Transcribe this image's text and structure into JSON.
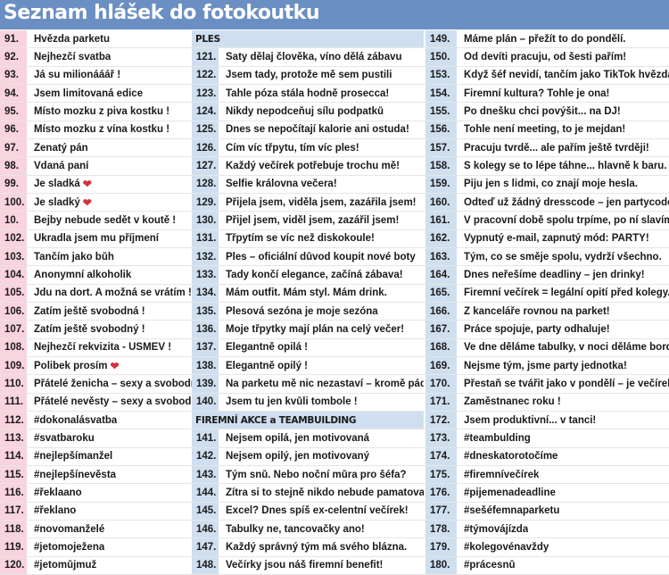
{
  "title": "Seznam hlášek do fotokoutku",
  "colors": {
    "header": "#6b8fc2",
    "col1_number_bg": "#f9d3de",
    "col23_number_bg": "#cfdff0",
    "section_bg": "#cfdff0",
    "heart": "#d8303f"
  },
  "columns": [
    {
      "rows": [
        {
          "n": "91.",
          "t": "Hvězda parketu"
        },
        {
          "n": "92.",
          "t": "Nejhezčí svatba"
        },
        {
          "n": "93.",
          "t": "Já su milionááář !"
        },
        {
          "n": "94.",
          "t": "Jsem limitovaná edice"
        },
        {
          "n": "95.",
          "t": "Místo mozku z piva kostku !"
        },
        {
          "n": "96.",
          "t": "Místo mozku z vína kostku !"
        },
        {
          "n": "97.",
          "t": "Ženatý pán"
        },
        {
          "n": "98.",
          "t": "Vdaná paní"
        },
        {
          "n": "99.",
          "t": "Je sladká",
          "heart": true
        },
        {
          "n": "100.",
          "t": "Je sladký",
          "heart": true
        },
        {
          "n": "10.",
          "t": "Bejby nebude sedět v koutě !"
        },
        {
          "n": "102.",
          "t": "Ukradla jsem mu příjmení"
        },
        {
          "n": "103.",
          "t": "Tančím jako bůh"
        },
        {
          "n": "104.",
          "t": "Anonymní alkoholik"
        },
        {
          "n": "105.",
          "t": "Jdu na dort. A možná se vrátím !"
        },
        {
          "n": "106.",
          "t": "Zatím ještě svobodná !"
        },
        {
          "n": "107.",
          "t": "Zatím ještě svobodný !"
        },
        {
          "n": "108.",
          "t": "Nejhezčí rekvizita - USMĚV !"
        },
        {
          "n": "109.",
          "t": "Polibek prosím",
          "heart": true
        },
        {
          "n": "110.",
          "t": "Přátelé ženicha – sexy a svobodní!"
        },
        {
          "n": "111.",
          "t": "Přátelé nevěsty – sexy a svobodní!"
        },
        {
          "n": "112.",
          "t": "#dokonalásvatba"
        },
        {
          "n": "113.",
          "t": "#svatbaroku"
        },
        {
          "n": "114.",
          "t": "#nejlepšímanžel"
        },
        {
          "n": "115.",
          "t": "#nejlepšínevěsta"
        },
        {
          "n": "116.",
          "t": "#řeklaano"
        },
        {
          "n": "117.",
          "t": "#řeklano"
        },
        {
          "n": "118.",
          "t": "#novomanželé"
        },
        {
          "n": "119.",
          "t": "#jetomoježena"
        },
        {
          "n": "120.",
          "t": "#jetomůjmuž"
        }
      ]
    },
    {
      "rows": [
        {
          "section": "PLES"
        },
        {
          "n": "121.",
          "t": "Šaty dělaj člověka, víno dělá zábavu"
        },
        {
          "n": "122.",
          "t": "Jsem tady, protože mě sem pustili"
        },
        {
          "n": "123.",
          "t": "Tahle póza stála hodně prosecca!"
        },
        {
          "n": "124.",
          "t": "Nikdy nepodceňuj sílu podpatků"
        },
        {
          "n": "125.",
          "t": "Dnes se nepočítají kalorie ani ostuda!"
        },
        {
          "n": "126.",
          "t": "Čím víc třpytu, tím víc ples!"
        },
        {
          "n": "127.",
          "t": "Každý večírek potřebuje trochu mě!"
        },
        {
          "n": "128.",
          "t": "Selfie královna večera!"
        },
        {
          "n": "129.",
          "t": "Přijela jsem, viděla jsem, zazářila jsem!"
        },
        {
          "n": "130.",
          "t": "Přijel jsem, viděl jsem, zazářil jsem!"
        },
        {
          "n": "131.",
          "t": "Třpytím se víc než diskokoule!"
        },
        {
          "n": "132.",
          "t": "Ples – oficiální důvod koupit nové boty"
        },
        {
          "n": "133.",
          "t": "Tady končí elegance, začíná zábava!"
        },
        {
          "n": "134.",
          "t": "Mám outfit. Mám styl. Mám drink."
        },
        {
          "n": "135.",
          "t": "Plesová sezóna je moje sezóna"
        },
        {
          "n": "136.",
          "t": "Moje třpytky mají plán na celý večer!"
        },
        {
          "n": "137.",
          "t": "Elegantně opilá !"
        },
        {
          "n": "138.",
          "t": "Elegantně opilý !"
        },
        {
          "n": "139.",
          "t": "Na parketu mě nic nezastaví – kromě pádu!"
        },
        {
          "n": "140.",
          "t": "Jsem tu jen kvůli tombole !"
        },
        {
          "section": "FIREMNÍ AKCE a TEAMBUILDING"
        },
        {
          "n": "141.",
          "t": "Nejsem opilá, jen motivovaná"
        },
        {
          "n": "142.",
          "t": "Nejsem opilý, jen motivovaný"
        },
        {
          "n": "143.",
          "t": "Tým snů. Nebo noční můra pro šéfa?"
        },
        {
          "n": "144.",
          "t": "Zítra si to stejně nikdo nebude pamatovat"
        },
        {
          "n": "145.",
          "t": "Excel? Dnes spíš ex-celentní večírek!"
        },
        {
          "n": "146.",
          "t": "Tabulky ne, tancovačky ano!"
        },
        {
          "n": "147.",
          "t": "Každý správný tým má svého blázna."
        },
        {
          "n": "148.",
          "t": "Večírky jsou náš firemní benefit!"
        }
      ]
    },
    {
      "rows": [
        {
          "n": "149.",
          "t": "Máme plán – přežít to do pondělí."
        },
        {
          "n": "150.",
          "t": "Od devíti pracuju, od šesti pařím!"
        },
        {
          "n": "153.",
          "t": "Když šéf nevidí, tančím jako TikTok hvězda!"
        },
        {
          "n": "154.",
          "t": "Firemní kultura? Tohle je ona!"
        },
        {
          "n": "155.",
          "t": "Po dnešku chci povýšit... na DJ!"
        },
        {
          "n": "156.",
          "t": "Tohle není meeting, to je mejdan!"
        },
        {
          "n": "157.",
          "t": "Pracuju tvrdě... ale pařím ještě tvrději!"
        },
        {
          "n": "158.",
          "t": "S kolegy se to lépe táhne... hlavně k baru."
        },
        {
          "n": "159.",
          "t": "Piju jen s lidmi, co znají moje hesla."
        },
        {
          "n": "160.",
          "t": "Odteď už žádný dresscode – jen partycode!"
        },
        {
          "n": "161.",
          "t": "V pracovní době spolu trpíme, po ní slavíme!"
        },
        {
          "n": "162.",
          "t": "Vypnutý e-mail, zapnutý mód: PARTY!"
        },
        {
          "n": "163.",
          "t": "Tým, co se směje spolu, vydrží všechno."
        },
        {
          "n": "164.",
          "t": "Dnes neřešíme deadliny – jen drinky!"
        },
        {
          "n": "165.",
          "t": "Firemní večírek = legální opití před kolegy."
        },
        {
          "n": "166.",
          "t": "Z kanceláře rovnou na parket!"
        },
        {
          "n": "167.",
          "t": "Práce spojuje, party odhaluje!"
        },
        {
          "n": "168.",
          "t": "Ve dne děláme tabulky, v noci děláme bordel!"
        },
        {
          "n": "169.",
          "t": "Nejsme tým, jsme party jednotka!"
        },
        {
          "n": "170.",
          "t": "Přestaň se tvářit jako v pondělí – je večírek!"
        },
        {
          "n": "171.",
          "t": "Zaměstnanec roku !"
        },
        {
          "n": "172.",
          "t": "Jsem produktivní... v tanci!"
        },
        {
          "n": "173.",
          "t": "#teambulding"
        },
        {
          "n": "174.",
          "t": "#dneskatorotočíme"
        },
        {
          "n": "175.",
          "t": "#firemnívečírek"
        },
        {
          "n": "176.",
          "t": "#pijemenadeadline"
        },
        {
          "n": "177.",
          "t": "#sešéfemnaparketu"
        },
        {
          "n": "178.",
          "t": "#týmovájízda"
        },
        {
          "n": "179.",
          "t": "#kolegovénavždy"
        },
        {
          "n": "180.",
          "t": "#prácesnů"
        }
      ]
    }
  ]
}
